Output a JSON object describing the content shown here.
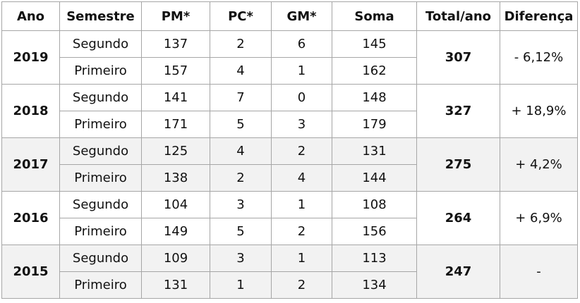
{
  "table": {
    "header": [
      "Ano",
      "Semestre",
      "PM*",
      "PC*",
      "GM*",
      "Soma",
      "Total/ano",
      "Diferença"
    ],
    "groups": [
      {
        "year": "2019",
        "total": "307",
        "diff": "- 6,12%",
        "rows": [
          [
            "Segundo",
            "137",
            "2",
            "6",
            "145"
          ],
          [
            "Primeiro",
            "157",
            "4",
            "1",
            "162"
          ]
        ]
      },
      {
        "year": "2018",
        "total": "327",
        "diff": "+ 18,9%",
        "rows": [
          [
            "Segundo",
            "141",
            "7",
            "0",
            "148"
          ],
          [
            "Primeiro",
            "171",
            "5",
            "3",
            "179"
          ]
        ]
      },
      {
        "year": "2017",
        "total": "275",
        "diff": "+ 4,2%",
        "rows": [
          [
            "Segundo",
            "125",
            "4",
            "2",
            "131"
          ],
          [
            "Primeiro",
            "138",
            "2",
            "4",
            "144"
          ]
        ]
      },
      {
        "year": "2016",
        "total": "264",
        "diff": "+ 6,9%",
        "rows": [
          [
            "Segundo",
            "104",
            "3",
            "1",
            "108"
          ],
          [
            "Primeiro",
            "149",
            "5",
            "2",
            "156"
          ]
        ]
      },
      {
        "year": "2015",
        "total": "247",
        "diff": "-",
        "rows": [
          [
            "Segundo",
            "109",
            "3",
            "1",
            "113"
          ],
          [
            "Primeiro",
            "131",
            "1",
            "2",
            "134"
          ]
        ]
      }
    ]
  }
}
